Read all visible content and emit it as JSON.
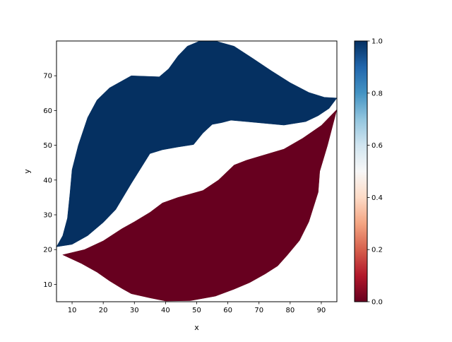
{
  "chart_data": {
    "type": "area",
    "xlabel": "x",
    "ylabel": "y",
    "xlim": [
      5,
      95
    ],
    "ylim": [
      5,
      80
    ],
    "x_ticks": [
      "10",
      "20",
      "30",
      "40",
      "50",
      "60",
      "70",
      "80",
      "90"
    ],
    "y_ticks": [
      "10",
      "20",
      "30",
      "40",
      "50",
      "60",
      "70"
    ],
    "colorbar": {
      "colormap": "RdBu",
      "range": [
        0,
        1
      ],
      "ticks": [
        "0.0",
        "0.2",
        "0.4",
        "0.6",
        "0.8",
        "1.0"
      ],
      "colors": [
        "#67001f",
        "#b2182b",
        "#d6604d",
        "#f4a582",
        "#fddbc7",
        "#f7f7f7",
        "#d1e5f0",
        "#92c5de",
        "#4393c3",
        "#2166ac",
        "#053061"
      ]
    },
    "regions": [
      {
        "value": 1.0,
        "color": "#053061",
        "points": [
          [
            5,
            20.8
          ],
          [
            7,
            24
          ],
          [
            8.5,
            29
          ],
          [
            9.3,
            36
          ],
          [
            10,
            43
          ],
          [
            12,
            50
          ],
          [
            15,
            58
          ],
          [
            18,
            63
          ],
          [
            22,
            66.5
          ],
          [
            26,
            68.5
          ],
          [
            29,
            70
          ],
          [
            38,
            69.7
          ],
          [
            41,
            72
          ],
          [
            44,
            75.7
          ],
          [
            47,
            78.5
          ],
          [
            51,
            80
          ],
          [
            56,
            80
          ],
          [
            62,
            78.5
          ],
          [
            68,
            75
          ],
          [
            74,
            71.4
          ],
          [
            80,
            68
          ],
          [
            86,
            65.2
          ],
          [
            91,
            63.8
          ],
          [
            95,
            63.6
          ],
          [
            92.5,
            60.6
          ],
          [
            89,
            58.5
          ],
          [
            85,
            56.8
          ],
          [
            78,
            55.8
          ],
          [
            72,
            56.3
          ],
          [
            66,
            56.8
          ],
          [
            61,
            57.2
          ],
          [
            58,
            56.5
          ],
          [
            55,
            56
          ],
          [
            52,
            53.5
          ],
          [
            49,
            50.2
          ],
          [
            44,
            49.5
          ],
          [
            39,
            48.7
          ],
          [
            35,
            47.6
          ],
          [
            29,
            39
          ],
          [
            24,
            31.5
          ],
          [
            20,
            27.8
          ],
          [
            15,
            24
          ],
          [
            10,
            21.5
          ],
          [
            5,
            20.8
          ]
        ]
      },
      {
        "value": 0.0,
        "color": "#67001f",
        "points": [
          [
            7,
            18.5
          ],
          [
            14,
            20
          ],
          [
            20,
            22.5
          ],
          [
            26,
            26
          ],
          [
            30,
            28
          ],
          [
            35,
            30.7
          ],
          [
            39,
            33.4
          ],
          [
            44,
            35
          ],
          [
            48,
            36
          ],
          [
            52,
            37
          ],
          [
            57,
            40
          ],
          [
            62,
            44.3
          ],
          [
            66,
            45.7
          ],
          [
            72,
            47.3
          ],
          [
            78,
            48.9
          ],
          [
            84,
            52
          ],
          [
            90,
            55.7
          ],
          [
            95,
            60.3
          ],
          [
            92,
            50
          ],
          [
            89.5,
            42.5
          ],
          [
            89,
            36.5
          ],
          [
            86,
            28
          ],
          [
            83,
            22.6
          ],
          [
            79,
            18.3
          ],
          [
            76,
            15.3
          ],
          [
            72,
            13
          ],
          [
            67,
            10.5
          ],
          [
            62,
            8.6
          ],
          [
            56,
            6.6
          ],
          [
            48,
            5.3
          ],
          [
            40,
            5.2
          ],
          [
            35,
            6.1
          ],
          [
            29,
            7.3
          ],
          [
            26,
            8.8
          ],
          [
            22,
            11
          ],
          [
            18,
            13.5
          ],
          [
            13,
            16
          ],
          [
            7,
            18.5
          ]
        ]
      }
    ]
  }
}
